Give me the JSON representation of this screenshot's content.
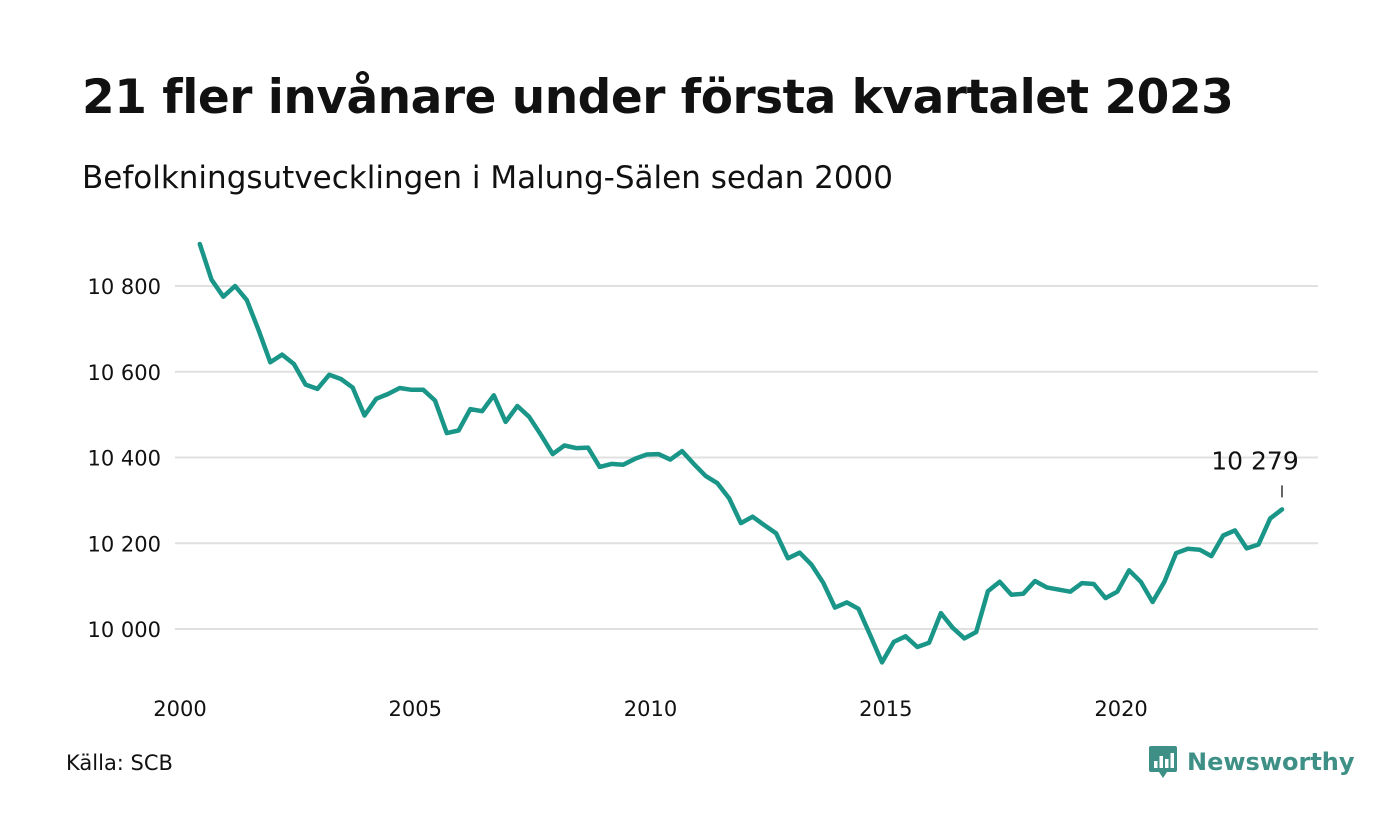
{
  "header": {
    "title": "21 fler invånare under första kvartalet 2023",
    "subtitle": "Befolkningsutvecklingen i Malung-Sälen sedan 2000"
  },
  "footer": {
    "source": "Källa: SCB",
    "brand": "Newsworthy",
    "brand_icon": "bar-chart-speech-bubble-icon"
  },
  "colors": {
    "line": "#1a9688",
    "grid": "#e0e0e0",
    "brand": "#3e8f86"
  },
  "chart_data": {
    "type": "line",
    "title": "21 fler invånare under första kvartalet 2023",
    "subtitle": "Befolkningsutvecklingen i Malung-Sälen sedan 2000",
    "xlabel": "",
    "ylabel": "",
    "x_ticks": [
      2000,
      2005,
      2010,
      2015,
      2020
    ],
    "x_tick_labels": [
      "2000",
      "2005",
      "2010",
      "2015",
      "2020"
    ],
    "xlim": [
      2000,
      2023.25
    ],
    "y_ticks": [
      10000,
      10200,
      10400,
      10600,
      10800
    ],
    "y_tick_labels": [
      "10 000",
      "10 200",
      "10 400",
      "10 600",
      "10 800"
    ],
    "ylim": [
      9900,
      10920
    ],
    "grid": "horizontal",
    "annotation": {
      "x": 2023.25,
      "y": 10279,
      "label": "10 279"
    },
    "series": [
      {
        "x": [
          2000.25,
          2000.5,
          2000.75,
          2001,
          2001.25,
          2001.5,
          2001.75,
          2002,
          2002.25,
          2002.5,
          2002.75,
          2003,
          2003.25,
          2003.5,
          2003.75,
          2004,
          2004.25,
          2004.5,
          2004.75,
          2005,
          2005.25,
          2005.5,
          2005.75,
          2006,
          2006.25,
          2006.5,
          2006.75,
          2007,
          2007.25,
          2007.5,
          2007.75,
          2008,
          2008.25,
          2008.5,
          2008.75,
          2009,
          2009.25,
          2009.5,
          2009.75,
          2010,
          2010.25,
          2010.5,
          2010.75,
          2011,
          2011.25,
          2011.5,
          2011.75,
          2012,
          2012.25,
          2012.5,
          2012.75,
          2013,
          2013.25,
          2013.5,
          2013.75,
          2014,
          2014.25,
          2014.5,
          2014.75,
          2015,
          2015.25,
          2015.5,
          2015.75,
          2016,
          2016.25,
          2016.5,
          2016.75,
          2017,
          2017.25,
          2017.5,
          2017.75,
          2018,
          2018.25,
          2018.5,
          2018.75,
          2019,
          2019.25,
          2019.5,
          2019.75,
          2020,
          2020.25,
          2020.5,
          2020.75,
          2021,
          2021.25,
          2021.5,
          2021.75,
          2022,
          2022.25,
          2022.5,
          2022.75,
          2023,
          2023.25
        ],
        "values": [
          10898,
          10815,
          10775,
          10800,
          10767,
          10697,
          10622,
          10640,
          10618,
          10570,
          10560,
          10593,
          10583,
          10563,
          10498,
          10537,
          10548,
          10562,
          10558,
          10558,
          10533,
          10457,
          10463,
          10513,
          10508,
          10545,
          10483,
          10520,
          10495,
          10453,
          10408,
          10428,
          10422,
          10423,
          10378,
          10385,
          10383,
          10397,
          10407,
          10408,
          10395,
          10415,
          10385,
          10357,
          10340,
          10305,
          10247,
          10262,
          10242,
          10223,
          10165,
          10178,
          10150,
          10108,
          10050,
          10062,
          10047,
          9985,
          9922,
          9970,
          9983,
          9958,
          9968,
          10037,
          10003,
          9978,
          9993,
          10088,
          10110,
          10080,
          10082,
          10112,
          10097,
          10092,
          10087,
          10107,
          10105,
          10072,
          10087,
          10137,
          10110,
          10063,
          10110,
          10177,
          10187,
          10185,
          10170,
          10218,
          10230,
          10188,
          10197,
          10258,
          10279
        ]
      }
    ]
  }
}
